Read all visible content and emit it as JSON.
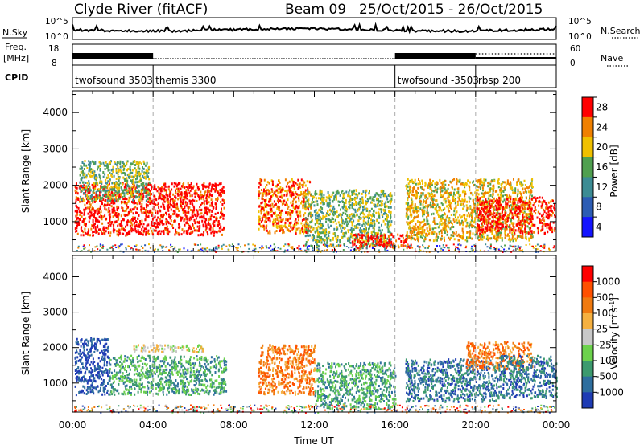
{
  "header": {
    "station": "Clyde River (fitACF)",
    "beam": "Beam 09",
    "date_range": "25/Oct/2015 - 26/Oct/2015"
  },
  "status_panels": {
    "nsky": {
      "label": "N.Sky",
      "tick_top": "10^5",
      "tick_bottom": "10^0"
    },
    "nsearch": {
      "label": "N.Search",
      "tick_top": "10^5",
      "tick_bottom": "10^0"
    },
    "freq": {
      "label_top": "Freq.",
      "label_unit": "[MHz]",
      "tick_top": "18",
      "tick_bottom": "8"
    },
    "nave": {
      "label": "Nave",
      "tick_top": "60",
      "tick_bottom": "0"
    },
    "cpid": {
      "label": "CPID",
      "modes": [
        {
          "name": "twofsound 3503",
          "start_hour": 0
        },
        {
          "name": "themis 3300",
          "start_hour": 4
        },
        {
          "name": "twofsound -3503",
          "start_hour": 16
        },
        {
          "name": "rbsp 200",
          "start_hour": 20
        }
      ]
    }
  },
  "chart_data": [
    {
      "type": "heatmap",
      "name": "power",
      "ylabel": "Slant Range [km]",
      "colorbar_label": "Power [dB]",
      "colorbar_ticks": [
        "4",
        "8",
        "12",
        "16",
        "20",
        "24",
        "28"
      ],
      "ylim": [
        180,
        4600
      ],
      "yticks": [
        1000,
        2000,
        3000,
        4000
      ],
      "xlim_hours": [
        0,
        24
      ],
      "colors": [
        "#1414ff",
        "#2c5cb4",
        "#3c8c94",
        "#50a050",
        "#f0c000",
        "#f08000",
        "#ff0000"
      ],
      "scatter_regions": [
        {
          "h0": 0.1,
          "h1": 7.5,
          "r0": 650,
          "r1": 2100,
          "level": 6
        },
        {
          "h0": 0.3,
          "h1": 3.8,
          "r0": 1600,
          "r1": 2700,
          "level": 3
        },
        {
          "h0": 9.2,
          "h1": 11.8,
          "r0": 700,
          "r1": 2200,
          "level": 5
        },
        {
          "h0": 11.5,
          "h1": 15.8,
          "r0": 350,
          "r1": 1900,
          "level": 3
        },
        {
          "h0": 13.8,
          "h1": 16.8,
          "r0": 300,
          "r1": 700,
          "level": 6
        },
        {
          "h0": 16.5,
          "h1": 22.8,
          "r0": 500,
          "r1": 2200,
          "level": 4
        },
        {
          "h0": 20.0,
          "h1": 23.9,
          "r0": 700,
          "r1": 1700,
          "level": 6
        }
      ],
      "vertical_markers_hours": [
        4,
        16,
        20
      ]
    },
    {
      "type": "heatmap",
      "name": "velocity",
      "ylabel": "Slant Range [km]",
      "xlabel": "Time UT",
      "colorbar_label": "Velocity [m s",
      "colorbar_label_sup": "-1",
      "colorbar_label_end": "]",
      "colorbar_ticks": [
        "1000",
        "500",
        "100",
        "25",
        "-25",
        "-100",
        "-500",
        "-1000"
      ],
      "ylim": [
        180,
        4600
      ],
      "yticks": [
        1000,
        2000,
        3000,
        4000
      ],
      "xlim_hours": [
        0,
        24
      ],
      "xticks": [
        "00:00",
        "04:00",
        "08:00",
        "12:00",
        "16:00",
        "20:00",
        "00:00"
      ],
      "colors": [
        "#1f3cb4",
        "#2e6e9e",
        "#3c9a6e",
        "#6cd24c",
        "#c8c8c8",
        "#f5b040",
        "#f07a10",
        "#ff5000",
        "#ff0000"
      ],
      "scatter_regions": [
        {
          "h0": 0.1,
          "h1": 1.8,
          "r0": 700,
          "r1": 2300,
          "level": 0
        },
        {
          "h0": 1.8,
          "h1": 7.6,
          "r0": 700,
          "r1": 1800,
          "level": 2
        },
        {
          "h0": 3.0,
          "h1": 6.5,
          "r0": 1900,
          "r1": 2100,
          "level": 4
        },
        {
          "h0": 9.2,
          "h1": 12.0,
          "r0": 700,
          "r1": 2100,
          "level": 6
        },
        {
          "h0": 12.0,
          "h1": 16.0,
          "r0": 300,
          "r1": 1600,
          "level": 2
        },
        {
          "h0": 16.5,
          "h1": 21.0,
          "r0": 500,
          "r1": 1700,
          "level": 1
        },
        {
          "h0": 19.5,
          "h1": 22.8,
          "r0": 1400,
          "r1": 2200,
          "level": 6
        },
        {
          "h0": 21.0,
          "h1": 24.0,
          "r0": 600,
          "r1": 1800,
          "level": 1
        }
      ],
      "vertical_markers_hours": [
        4,
        16,
        20
      ]
    }
  ]
}
